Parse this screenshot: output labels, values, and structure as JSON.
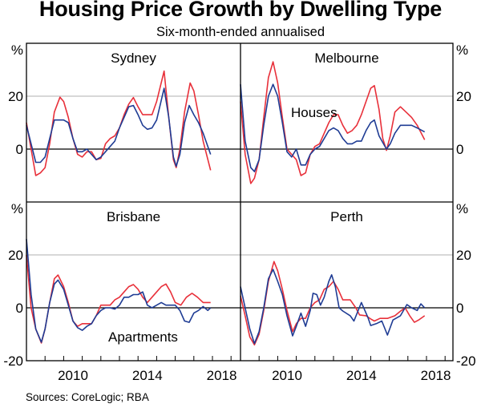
{
  "title": "Housing Price Growth by Dwelling Type",
  "subtitle": "Six-month-ended annualised",
  "source": "Sources: CoreLogic; RBA",
  "colors": {
    "houses": "#E8303A",
    "apartments": "#1F3C94",
    "grid": "#B0B0B0",
    "axis": "#000000"
  },
  "chart_data": {
    "type": "line",
    "title": "Housing Price Growth by Dwelling Type",
    "subtitle": "Six-month-ended annualised",
    "unit_label": "%",
    "xlim": [
      2008.0,
      2019.5
    ],
    "ylim": [
      -20,
      40
    ],
    "yticks": [
      -20,
      0,
      20
    ],
    "xtick_labels": [
      {
        "label": "2010",
        "year": 2010.5
      },
      {
        "label": "2014",
        "year": 2014.5
      },
      {
        "label": "2018",
        "year": 2018.5
      }
    ],
    "minor_ticks_years": [
      2009,
      2010,
      2011,
      2012,
      2013,
      2014,
      2015,
      2016,
      2017,
      2018,
      2019
    ],
    "grid": true,
    "legend": {
      "houses_label": "Houses",
      "apartments_label": "Apartments",
      "placement": "inline annotations"
    },
    "panels": [
      {
        "name": "Sydney",
        "series": [
          {
            "name": "Houses",
            "x": [
              2008.0,
              2008.25,
              2008.5,
              2008.75,
              2009.0,
              2009.25,
              2009.5,
              2009.8,
              2010.0,
              2010.25,
              2010.5,
              2010.75,
              2011.0,
              2011.25,
              2011.5,
              2011.75,
              2012.0,
              2012.25,
              2012.5,
              2012.75,
              2013.0,
              2013.25,
              2013.5,
              2013.75,
              2014.0,
              2014.25,
              2014.5,
              2014.75,
              2015.0,
              2015.4,
              2015.65,
              2015.9,
              2016.05,
              2016.25,
              2016.5,
              2016.8,
              2017.0,
              2017.25,
              2017.5,
              2017.9
            ],
            "y": [
              10,
              0,
              -10,
              -9,
              -7,
              2,
              14,
              19.6,
              18,
              12,
              4,
              -2,
              -3,
              -1,
              -1,
              -4,
              -3.5,
              2,
              4,
              5,
              8,
              13,
              17,
              19.5,
              16,
              13,
              13,
              13,
              18,
              29.5,
              12,
              -4,
              -7,
              0,
              14,
              25,
              22,
              13,
              3,
              -8
            ]
          },
          {
            "name": "Apartments",
            "x": [
              2008.0,
              2008.25,
              2008.5,
              2008.75,
              2009.0,
              2009.25,
              2009.5,
              2009.75,
              2010.0,
              2010.25,
              2010.5,
              2010.75,
              2011.0,
              2011.25,
              2011.5,
              2011.75,
              2012.0,
              2012.25,
              2012.5,
              2012.75,
              2013.0,
              2013.25,
              2013.5,
              2013.75,
              2014.0,
              2014.25,
              2014.5,
              2014.75,
              2015.0,
              2015.4,
              2015.65,
              2015.9,
              2016.05,
              2016.25,
              2016.5,
              2016.75,
              2017.0,
              2017.25,
              2017.5,
              2017.9
            ],
            "y": [
              9,
              2,
              -5,
              -5,
              -3,
              4,
              11,
              11,
              11,
              10,
              4,
              -1,
              -1,
              0,
              -2,
              -4,
              -3,
              -1,
              1,
              3,
              8,
              12,
              16,
              16.5,
              13,
              9,
              7.5,
              8,
              11,
              23,
              12,
              -3,
              -6.5,
              -2,
              10,
              16.5,
              13,
              10,
              6,
              -2
            ]
          }
        ]
      },
      {
        "name": "Melbourne",
        "series": [
          {
            "name": "Houses",
            "x": [
              2008.0,
              2008.25,
              2008.55,
              2008.75,
              2009.0,
              2009.25,
              2009.5,
              2009.75,
              2010.0,
              2010.25,
              2010.5,
              2010.75,
              2011.0,
              2011.25,
              2011.5,
              2011.75,
              2012.0,
              2012.25,
              2012.5,
              2012.75,
              2013.0,
              2013.25,
              2013.5,
              2013.75,
              2014.0,
              2014.25,
              2014.5,
              2014.75,
              2015.0,
              2015.2,
              2015.45,
              2015.65,
              2015.85,
              2016.05,
              2016.3,
              2016.6,
              2016.9,
              2017.2,
              2017.5,
              2017.9
            ],
            "y": [
              18,
              -2,
              -13,
              -11,
              -4,
              12,
              27,
              33,
              25,
              12,
              0,
              -2,
              -4,
              -10,
              -9,
              -2,
              1,
              2,
              6,
              10,
              13,
              13,
              9,
              6,
              7,
              9,
              13,
              18,
              23,
              24,
              15,
              4,
              -0.5,
              5,
              14,
              16,
              14,
              12,
              9,
              3.5
            ]
          },
          {
            "name": "Apartments",
            "x": [
              2008.0,
              2008.25,
              2008.55,
              2008.75,
              2009.0,
              2009.25,
              2009.5,
              2009.75,
              2010.0,
              2010.25,
              2010.5,
              2010.75,
              2011.0,
              2011.25,
              2011.5,
              2011.75,
              2012.0,
              2012.25,
              2012.5,
              2012.75,
              2013.0,
              2013.25,
              2013.5,
              2013.75,
              2014.0,
              2014.25,
              2014.5,
              2014.75,
              2015.0,
              2015.2,
              2015.45,
              2015.85,
              2016.05,
              2016.3,
              2016.6,
              2016.9,
              2017.2,
              2017.5,
              2017.9
            ],
            "y": [
              24.5,
              3,
              -7,
              -8.5,
              -4,
              9,
              20,
              24.5,
              20,
              10,
              -1,
              -3,
              0,
              -6,
              -6,
              -2,
              0,
              1,
              4,
              7,
              8,
              7,
              4,
              2,
              2,
              3,
              3,
              7,
              10,
              11,
              5,
              0,
              2,
              6,
              9,
              9,
              9,
              8,
              6.5
            ]
          }
        ]
      },
      {
        "name": "Brisbane",
        "series": [
          {
            "name": "Houses",
            "x": [
              2008.0,
              2008.25,
              2008.5,
              2008.8,
              2009.0,
              2009.25,
              2009.5,
              2009.7,
              2010.0,
              2010.25,
              2010.5,
              2010.75,
              2011.0,
              2011.25,
              2011.5,
              2011.75,
              2012.0,
              2012.25,
              2012.5,
              2012.75,
              2013.0,
              2013.25,
              2013.5,
              2013.75,
              2014.0,
              2014.25,
              2014.5,
              2014.75,
              2015.0,
              2015.25,
              2015.5,
              2015.75,
              2016.0,
              2016.3,
              2016.6,
              2016.9,
              2017.2,
              2017.5,
              2017.9
            ],
            "y": [
              20,
              0,
              -8,
              -13.3,
              -8,
              2,
              11,
              12.4,
              8,
              2,
              -5,
              -7,
              -6,
              -6,
              -6,
              -3,
              1,
              1,
              1,
              3,
              4,
              6,
              8,
              8.8,
              7,
              4,
              2,
              4,
              6,
              8,
              9,
              6,
              2,
              1,
              4,
              5.5,
              4,
              2,
              2
            ]
          },
          {
            "name": "Apartments",
            "x": [
              2008.0,
              2008.25,
              2008.5,
              2008.8,
              2009.0,
              2009.25,
              2009.5,
              2009.7,
              2010.0,
              2010.25,
              2010.5,
              2010.75,
              2011.0,
              2011.25,
              2011.5,
              2011.75,
              2012.0,
              2012.25,
              2012.5,
              2012.75,
              2013.0,
              2013.25,
              2013.5,
              2013.75,
              2014.0,
              2014.25,
              2014.5,
              2014.75,
              2015.0,
              2015.25,
              2015.5,
              2015.75,
              2016.0,
              2016.25,
              2016.5,
              2016.75,
              2017.0,
              2017.25,
              2017.5,
              2017.75,
              2017.9
            ],
            "y": [
              26,
              5,
              -8,
              -13,
              -8,
              2,
              9,
              10.5,
              7,
              1,
              -5,
              -7.5,
              -8.5,
              -7,
              -6,
              -3,
              -1,
              0,
              0,
              -0.5,
              1,
              4,
              4,
              5,
              5,
              6,
              1,
              0,
              1,
              2,
              1,
              1,
              1,
              -1,
              -5,
              -5.5,
              -2,
              -1,
              0.5,
              -1,
              0
            ]
          }
        ]
      },
      {
        "name": "Perth",
        "series": [
          {
            "name": "Houses",
            "x": [
              2008.0,
              2008.25,
              2008.5,
              2008.75,
              2009.0,
              2009.25,
              2009.5,
              2009.8,
              2010.0,
              2010.25,
              2010.5,
              2010.8,
              2011.0,
              2011.25,
              2011.5,
              2011.75,
              2012.0,
              2012.25,
              2012.5,
              2012.75,
              2013.0,
              2013.25,
              2013.5,
              2013.9,
              2014.2,
              2014.4,
              2014.75,
              2015.0,
              2015.2,
              2015.5,
              2015.9,
              2016.3,
              2016.65,
              2016.85,
              2017.1,
              2017.35,
              2017.6,
              2017.9
            ],
            "y": [
              4.5,
              -3,
              -11,
              -14,
              -10,
              -1,
              10,
              17.5,
              14,
              7,
              -1,
              -9,
              -6,
              -4,
              -4,
              0,
              2,
              3,
              7,
              8,
              10,
              7,
              3,
              3,
              0,
              -2.7,
              -3,
              -4.2,
              -5,
              -4,
              -4,
              -3,
              -1,
              0,
              -3,
              -5.5,
              -4.5,
              -3
            ]
          },
          {
            "name": "Apartments",
            "x": [
              2008.0,
              2008.25,
              2008.5,
              2008.75,
              2009.0,
              2009.25,
              2009.5,
              2009.75,
              2010.0,
              2010.25,
              2010.5,
              2010.8,
              2011.0,
              2011.25,
              2011.5,
              2011.75,
              2011.9,
              2012.1,
              2012.3,
              2012.5,
              2012.75,
              2012.9,
              2013.1,
              2013.3,
              2013.5,
              2013.9,
              2014.1,
              2014.5,
              2014.85,
              2015.0,
              2015.3,
              2015.6,
              2015.9,
              2016.2,
              2016.6,
              2016.95,
              2017.2,
              2017.5,
              2017.7,
              2017.9
            ],
            "y": [
              8,
              0,
              -8,
              -13.5,
              -9,
              0,
              11,
              14.5,
              10,
              5,
              -3,
              -10.6,
              -7,
              -2,
              -7,
              -1,
              5.5,
              5,
              1,
              4,
              10,
              12.5,
              8,
              0,
              -1.2,
              -3,
              -5,
              2,
              -3.6,
              -6.7,
              -6,
              -5,
              -10.3,
              -4.6,
              -3,
              1.2,
              0,
              -1,
              1.5,
              0
            ]
          }
        ]
      }
    ]
  }
}
